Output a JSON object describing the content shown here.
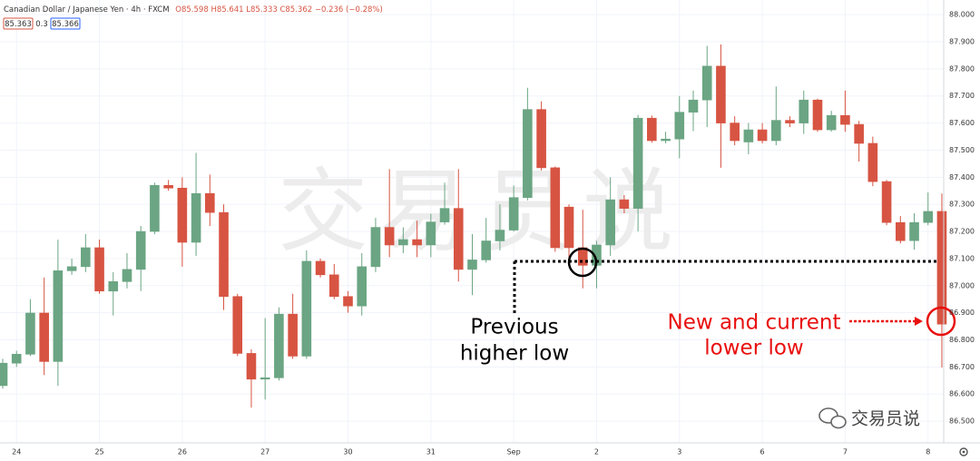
{
  "chart_data": {
    "type": "candlestick",
    "title": "Canadian Dollar / Japanese Yen · 4h · FXCM",
    "ohlc_labels": [
      "O85.598",
      "H85.641",
      "L85.333",
      "C85.362",
      "−0.236 (−0.28%)"
    ],
    "price_boxes": [
      "85.363",
      "0.3",
      "85.366"
    ],
    "watermark": "交易员说",
    "logo": "交易员说",
    "annotations": [
      [
        "Previous",
        "higher low"
      ],
      [
        "New and current",
        "lower low"
      ]
    ],
    "up_color": "#6ba583",
    "down_color": "#d75442",
    "grid": true,
    "ylim": [
      86.42,
      88.054
    ],
    "yticks": [
      {
        "value": 86.5,
        "label": "86.500"
      },
      {
        "value": 86.6,
        "label": "86.600"
      },
      {
        "value": 86.7,
        "label": "86.700"
      },
      {
        "value": 86.8,
        "label": "86.800"
      },
      {
        "value": 86.9,
        "label": "86.900"
      },
      {
        "value": 87.0,
        "label": "87.000"
      },
      {
        "value": 87.1,
        "label": "87.100"
      },
      {
        "value": 87.2,
        "label": "87.200"
      },
      {
        "value": 87.3,
        "label": "87.300"
      },
      {
        "value": 87.4,
        "label": "87.400"
      },
      {
        "value": 87.5,
        "label": "87.500"
      },
      {
        "value": 87.6,
        "label": "87.600"
      },
      {
        "value": 87.7,
        "label": "87.700"
      },
      {
        "value": 87.8,
        "label": "87.800"
      },
      {
        "value": 87.9,
        "label": "87.900"
      },
      {
        "value": 88.0,
        "label": "88.000"
      }
    ],
    "categories": [
      null,
      "24",
      null,
      null,
      null,
      null,
      null,
      "25",
      null,
      null,
      null,
      null,
      null,
      "26",
      null,
      null,
      null,
      null,
      null,
      "27",
      null,
      null,
      null,
      null,
      null,
      "30",
      null,
      null,
      null,
      null,
      null,
      "31",
      null,
      null,
      null,
      null,
      null,
      "Sep",
      null,
      null,
      null,
      null,
      null,
      "2",
      null,
      null,
      null,
      null,
      null,
      "3",
      null,
      null,
      null,
      null,
      null,
      "6",
      null,
      null,
      null,
      null,
      null,
      "7",
      null,
      null,
      null,
      null,
      null,
      "8",
      null
    ],
    "open": [
      86.631,
      86.714,
      86.747,
      86.899,
      86.72,
      87.055,
      87.07,
      87.14,
      86.98,
      87.015,
      87.06,
      87.2,
      87.37,
      87.36,
      87.16,
      87.34,
      87.27,
      86.96,
      86.75,
      86.655,
      86.66,
      86.895,
      86.74,
      87.09,
      87.04,
      86.96,
      86.925,
      87.07,
      87.215,
      87.15,
      87.17,
      87.15,
      87.235,
      87.285,
      87.06,
      87.095,
      87.165,
      87.205,
      87.325,
      87.65,
      87.435,
      87.29,
      87.14,
      87.075,
      87.15,
      87.317,
      87.285,
      87.618,
      87.535,
      87.541,
      87.64,
      87.685,
      87.81,
      87.6,
      87.53,
      87.575,
      87.535,
      87.61,
      87.6,
      87.685,
      87.575,
      87.628,
      87.595,
      87.525,
      87.384,
      87.233,
      87.166,
      87.233,
      87.274
    ],
    "high": [
      86.73,
      86.76,
      86.95,
      87.03,
      87.17,
      87.1,
      87.19,
      87.17,
      87.05,
      87.12,
      87.22,
      87.38,
      87.39,
      87.4,
      87.49,
      87.41,
      87.3,
      86.97,
      86.765,
      86.88,
      86.92,
      86.97,
      87.13,
      87.1,
      87.08,
      86.98,
      87.12,
      87.25,
      87.43,
      87.215,
      87.24,
      87.265,
      87.38,
      87.43,
      87.19,
      87.25,
      87.3,
      87.37,
      87.73,
      87.68,
      87.44,
      87.3,
      87.28,
      87.165,
      87.4,
      87.334,
      87.63,
      87.628,
      87.568,
      87.7,
      87.72,
      87.885,
      87.89,
      87.625,
      87.6,
      87.6,
      87.735,
      87.625,
      87.72,
      87.69,
      87.645,
      87.72,
      87.608,
      87.55,
      87.39,
      87.257,
      87.267,
      87.344,
      87.34
    ],
    "low": [
      86.62,
      86.7,
      86.74,
      86.67,
      86.63,
      87.04,
      87.05,
      86.97,
      86.89,
      86.99,
      86.98,
      87.19,
      87.35,
      87.07,
      87.11,
      87.22,
      86.91,
      86.74,
      86.55,
      86.58,
      86.65,
      86.73,
      86.73,
      87.03,
      86.95,
      86.9,
      86.89,
      87.05,
      87.105,
      87.12,
      87.105,
      87.105,
      87.225,
      87.015,
      86.965,
      87.085,
      87.13,
      87.2,
      87.315,
      87.425,
      87.125,
      87.09,
      86.99,
      86.99,
      87.11,
      87.267,
      87.2,
      87.528,
      87.525,
      87.47,
      87.57,
      87.585,
      87.435,
      87.518,
      87.485,
      87.525,
      87.518,
      87.585,
      87.56,
      87.568,
      87.568,
      87.568,
      87.458,
      87.367,
      87.223,
      87.156,
      87.133,
      87.223,
      86.698
    ],
    "close": [
      86.714,
      86.747,
      86.899,
      86.72,
      87.055,
      87.07,
      87.14,
      86.98,
      87.015,
      87.06,
      87.2,
      87.37,
      87.36,
      87.16,
      87.34,
      87.27,
      86.96,
      86.75,
      86.655,
      86.66,
      86.895,
      86.74,
      87.09,
      87.04,
      86.96,
      86.925,
      87.07,
      87.215,
      87.15,
      87.17,
      87.15,
      87.235,
      87.285,
      87.06,
      87.095,
      87.165,
      87.205,
      87.325,
      87.65,
      87.435,
      87.14,
      87.14,
      87.075,
      87.15,
      87.317,
      87.285,
      87.618,
      87.535,
      87.541,
      87.64,
      87.685,
      87.81,
      87.6,
      87.535,
      87.575,
      87.535,
      87.61,
      87.6,
      87.685,
      87.575,
      87.628,
      87.595,
      87.525,
      87.384,
      87.233,
      87.166,
      87.233,
      87.274,
      86.858
    ]
  }
}
